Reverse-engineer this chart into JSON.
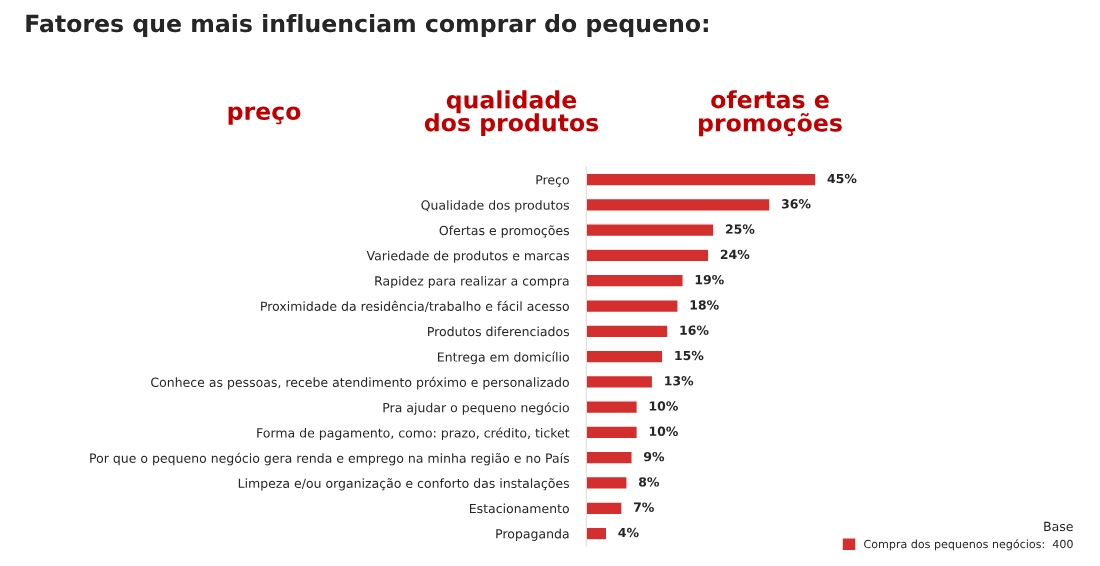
{
  "chart_data": {
    "type": "bar",
    "orientation": "horizontal",
    "title": "Fatores que mais influenciam comprar do pequeno:",
    "annotations": [
      "preço",
      "qualidade\ndos produtos",
      "ofertas e\npromoções"
    ],
    "categories": [
      "Preço",
      "Qualidade dos produtos",
      "Ofertas e promoções",
      "Variedade de produtos e marcas",
      "Rapidez para realizar a compra",
      "Proximidade da residência/trabalho e fácil acesso",
      "Produtos diferenciados",
      "Entrega em domicílio",
      "Conhece as pessoas, recebe atendimento próximo e personalizado",
      "Pra ajudar o pequeno negócio",
      "Forma de pagamento, como: prazo, crédito, ticket",
      "Por que o pequeno negócio gera renda e emprego na minha região e no País",
      "Limpeza e/ou organização e conforto das instalações",
      "Estacionamento",
      "Propaganda"
    ],
    "series": [
      {
        "name": "Compra dos pequenos negócios:  400",
        "color": "#d32f2f",
        "values": [
          45,
          36,
          25,
          24,
          19,
          18,
          16,
          15,
          13,
          10,
          10,
          9,
          8,
          7,
          4
        ],
        "value_labels": [
          "45%",
          "36%",
          "25%",
          "24%",
          "19%",
          "18%",
          "16%",
          "15%",
          "13%",
          "10%",
          "10%",
          "9%",
          "8%",
          "7%",
          "4%"
        ]
      }
    ],
    "legend_title": "Base",
    "legend": "bottom right",
    "grid": false
  }
}
